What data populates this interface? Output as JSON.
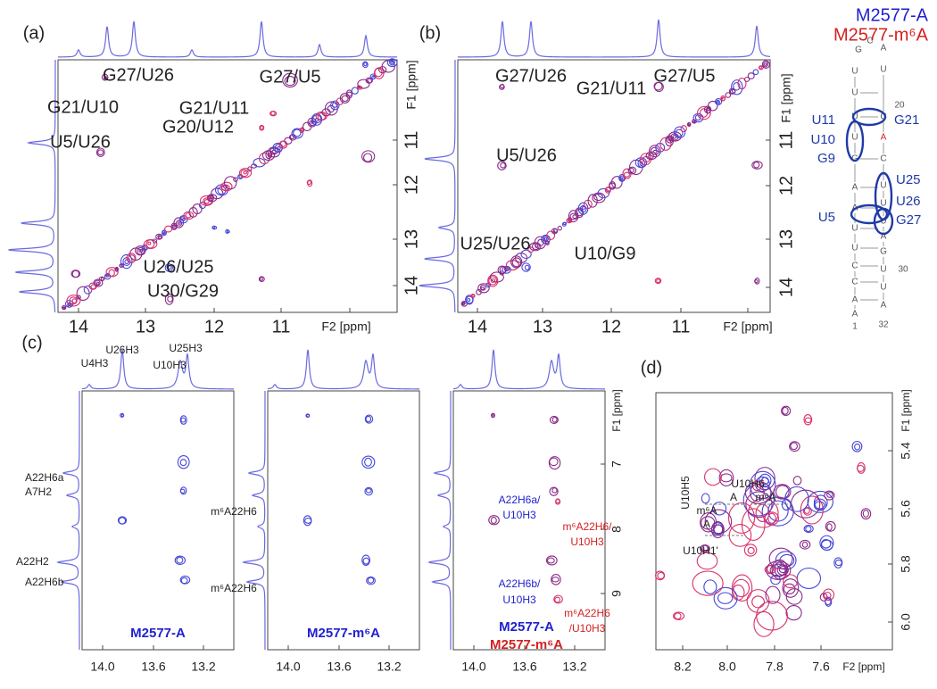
{
  "legend": {
    "items": [
      "M2577-A",
      "M2577-m⁶A"
    ]
  },
  "panels": {
    "a": {
      "label": "(a)",
      "x_ticks": [
        "14",
        "13",
        "12",
        "11"
      ],
      "x_title": "F2 [ppm]",
      "y_ticks": [
        "11",
        "12",
        "13",
        "14"
      ],
      "y_title": "F1 [ppm]",
      "annotations": [
        "G27/U26",
        "G21/U10",
        "G21/U11",
        "G20/U12",
        "U5/U26",
        "G27/U5",
        "U26/U25",
        "U30/G29"
      ]
    },
    "b": {
      "label": "(b)",
      "x_ticks": [
        "14",
        "13",
        "12",
        "11"
      ],
      "x_title": "F2 [ppm]",
      "y_ticks": [
        "11",
        "12",
        "13",
        "14"
      ],
      "y_title": "F1 [ppm]",
      "annotations": [
        "G27/U26",
        "G21/U11",
        "G27/U5",
        "U5/U26",
        "U25/U26",
        "U10/G9"
      ]
    },
    "c": {
      "label": "(c)",
      "peak_labels": [
        "U26H3",
        "U25H3",
        "U4H3",
        "U10H3"
      ],
      "f1_labels": [
        "A22H6a",
        "A7H2",
        "A22H2",
        "A22H6b"
      ],
      "between_labels": [
        "m⁶A22H6",
        "m⁶A22H6"
      ],
      "subpanels": [
        {
          "x_ticks": [
            "14.0",
            "13.6",
            "13.2"
          ],
          "caption": [
            "M2577-A"
          ]
        },
        {
          "x_ticks": [
            "14.0",
            "13.6",
            "13.2"
          ],
          "caption": [
            "M2577-m⁶A"
          ]
        },
        {
          "x_ticks": [
            "14.0",
            "13.6",
            "13.2"
          ],
          "caption": [
            "M2577-A",
            "M2577-m⁶A"
          ],
          "y_ticks": [
            "7",
            "8",
            "9"
          ],
          "y_title": "F1 [ppm]",
          "annotations_blue": [
            "A22H6a/",
            "U10H3",
            "A22H6b/",
            "U10H3"
          ],
          "annotations_red": [
            "m⁶A22H6/",
            "U10H3",
            "m⁶A22H6",
            "/U10H3"
          ]
        }
      ]
    },
    "d": {
      "label": "(d)",
      "x_ticks": [
        "8.2",
        "8.0",
        "7.8",
        "7.6"
      ],
      "x_title": "F2 [ppm]",
      "y_ticks": [
        "5.4",
        "5.6",
        "5.8",
        "6.0"
      ],
      "y_title": "F1 [ppm]",
      "annotations": [
        "U10H6",
        "A",
        "m⁶A",
        "U10H5",
        "m⁶A",
        "A",
        "U10H1'"
      ]
    }
  },
  "rna": {
    "labels": [
      "U11",
      "G21",
      "U10",
      "G9",
      "U25",
      "U26",
      "U5",
      "G27"
    ],
    "nucleotides": [
      "G",
      "C",
      "A",
      "U",
      "U",
      "U",
      "U",
      "G",
      "A",
      "A",
      "U",
      "U",
      "C",
      "C",
      "A",
      "A",
      "U",
      "C",
      "A",
      "C",
      "U",
      "U",
      "U",
      "A",
      "G",
      "U",
      "U",
      "A"
    ],
    "numbers": [
      "20",
      "30",
      "32",
      "1"
    ]
  }
}
